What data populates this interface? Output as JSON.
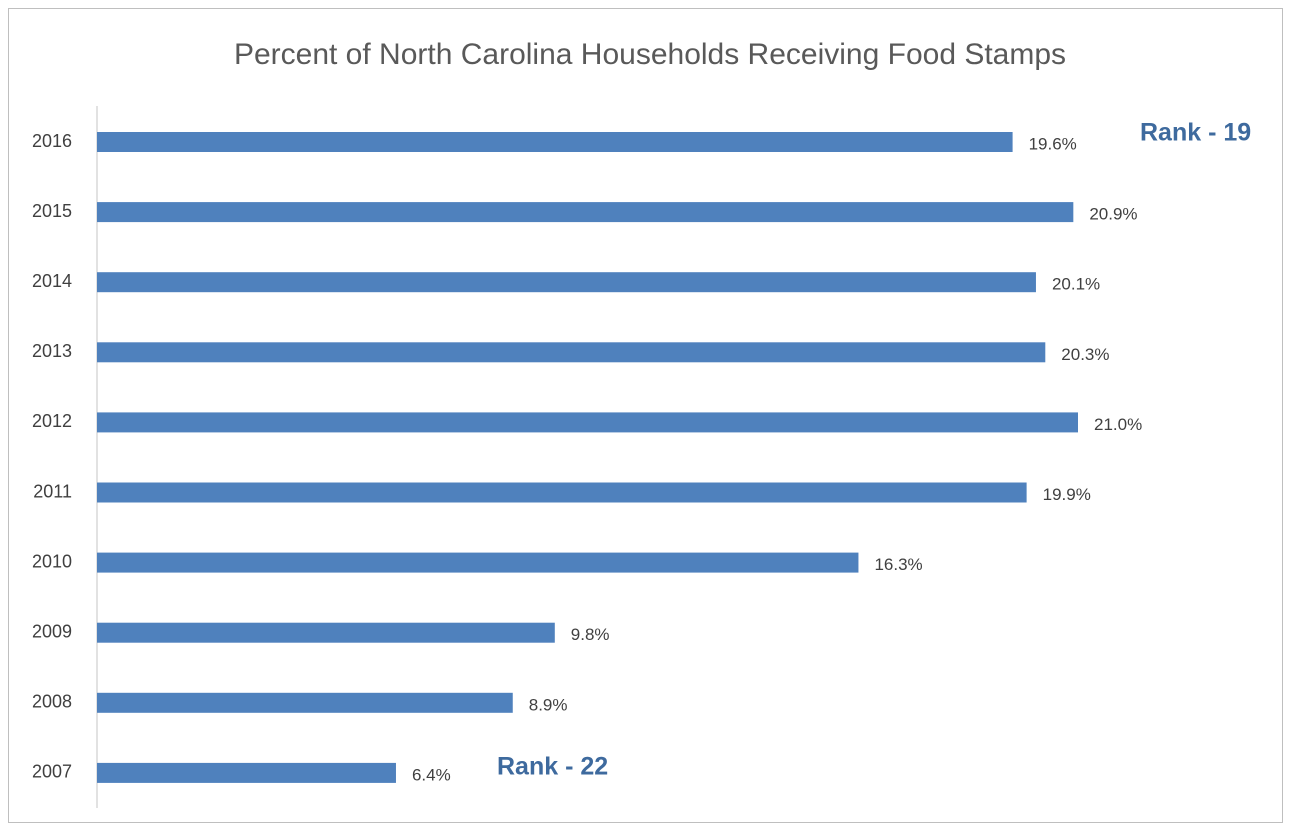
{
  "chart_data": {
    "type": "bar",
    "orientation": "horizontal",
    "title": "Percent of North Carolina Households Receiving Food Stamps",
    "categories": [
      "2016",
      "2015",
      "2014",
      "2013",
      "2012",
      "2011",
      "2010",
      "2009",
      "2008",
      "2007"
    ],
    "values": [
      19.6,
      20.9,
      20.1,
      20.3,
      21.0,
      19.9,
      16.3,
      9.8,
      8.9,
      6.4
    ],
    "value_labels": [
      "19.6%",
      "20.9%",
      "20.1%",
      "20.3%",
      "21.0%",
      "19.9%",
      "16.3%",
      "9.8%",
      "8.9%",
      "6.4%"
    ],
    "color": "#4f81bd",
    "annotations": [
      "Rank - 19",
      "Rank - 22"
    ]
  }
}
